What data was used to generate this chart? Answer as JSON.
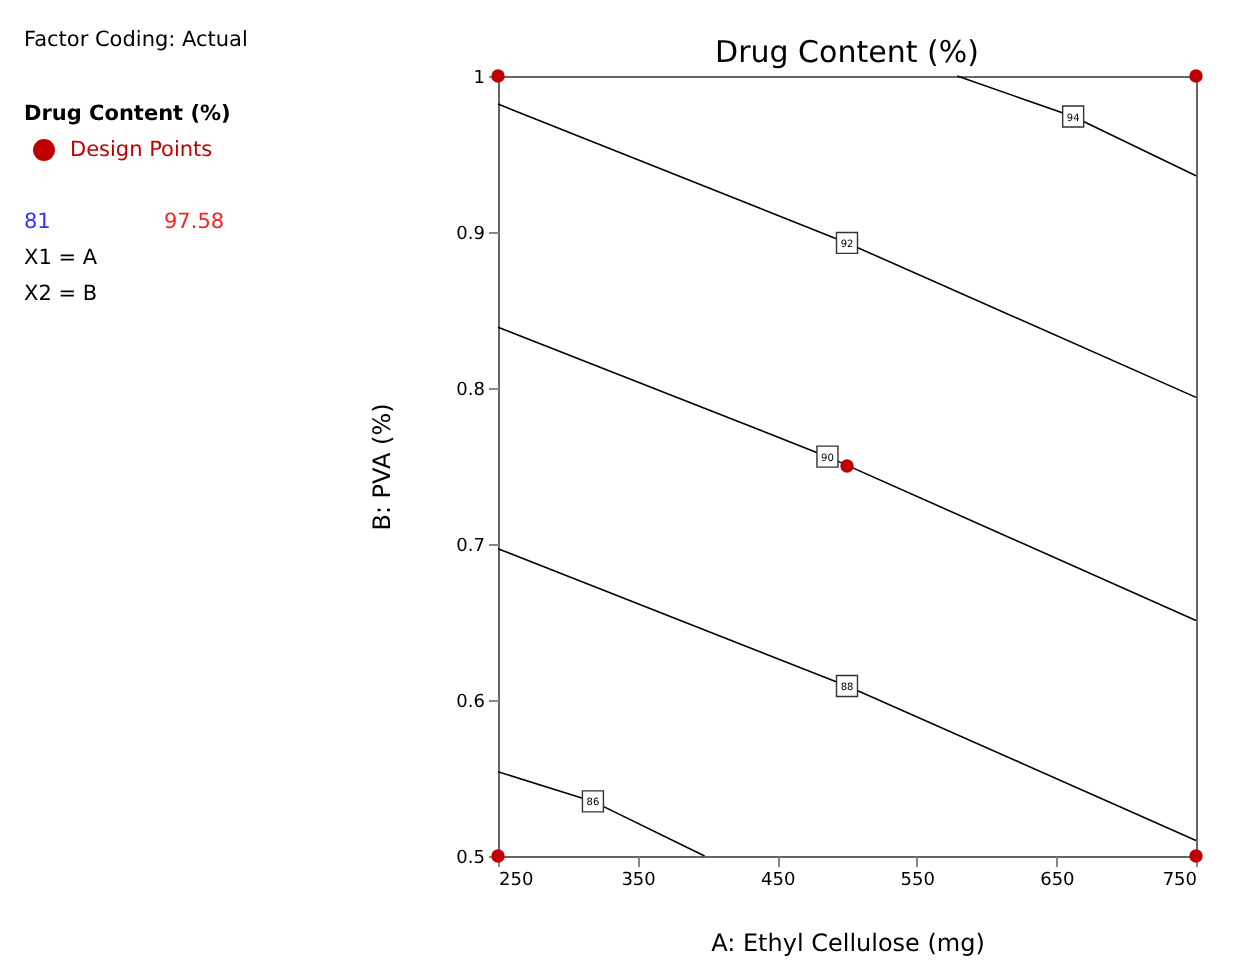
{
  "chart_data": {
    "type": "line",
    "title": "Drug Content (%)",
    "xlabel": "A: Ethyl Cellulose (mg)",
    "ylabel": "B: PVA (%)",
    "legend_title": "Drug Content (%)",
    "xlim": [
      250,
      750
    ],
    "ylim": [
      0.5,
      1
    ],
    "xticks": [
      250,
      350,
      450,
      550,
      650,
      750
    ],
    "yticks": [
      0.5,
      0.6,
      0.7,
      0.8,
      0.9,
      1
    ],
    "grid": false,
    "legend": "left",
    "series": [
      {
        "name": "86",
        "color": "#000000",
        "x": [
          250,
          318,
          398
        ],
        "values": [
          0.554,
          0.535,
          0.5
        ]
      },
      {
        "name": "88",
        "color": "#000000",
        "x": [
          250,
          500,
          750
        ],
        "values": [
          0.697,
          0.609,
          0.51
        ]
      },
      {
        "name": "90",
        "color": "#000000",
        "x": [
          250,
          486,
          750
        ],
        "values": [
          0.839,
          0.756,
          0.651
        ]
      },
      {
        "name": "92",
        "color": "#000000",
        "x": [
          250,
          500,
          750
        ],
        "values": [
          0.982,
          0.893,
          0.794
        ]
      },
      {
        "name": "94",
        "color": "#000000",
        "x": [
          579,
          662,
          750
        ],
        "values": [
          1.0,
          0.974,
          0.936
        ]
      },
      {
        "name": "Design Points",
        "type": "scatter",
        "color": "#c00000",
        "x": [
          250,
          750,
          500,
          250,
          750
        ],
        "values": [
          1,
          1,
          0.75,
          0.5,
          0.5
        ]
      }
    ],
    "annotations": [
      "Factor Coding: Actual",
      "81",
      "97.58",
      "X1 = A",
      "X2 = B"
    ]
  }
}
